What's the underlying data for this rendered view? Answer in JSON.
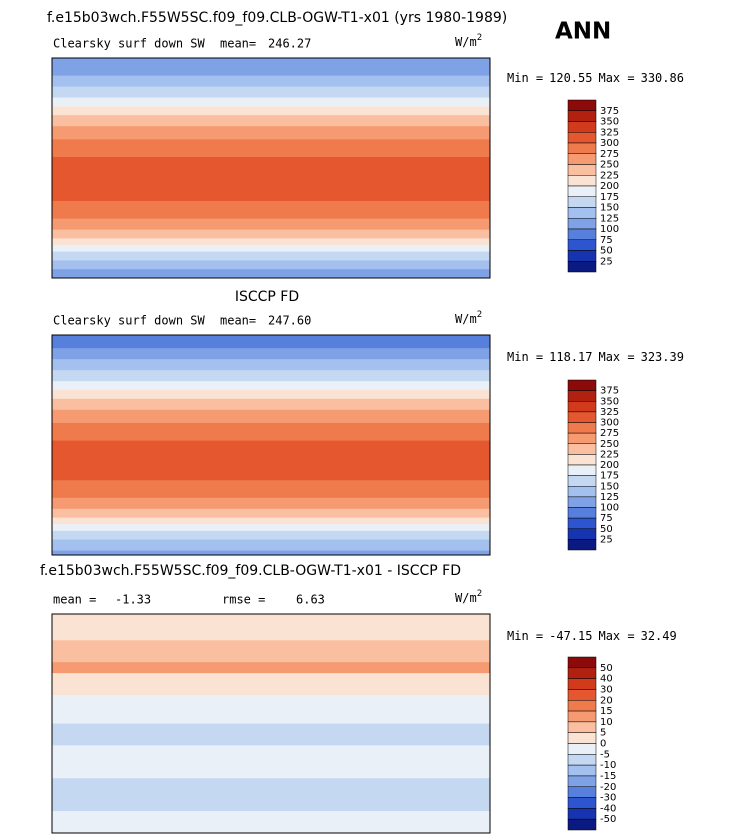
{
  "header": {
    "title": "f.e15b03wch.F55W5SC.f09_f09.CLB-OGW-T1-x01 (yrs 1980-1989)",
    "season": "ANN"
  },
  "panels": [
    {
      "variable": "Clearsky surf down SW",
      "mean_label": "mean=",
      "mean": "246.27",
      "units": "W/m",
      "units_exp": "2",
      "min_label": "Min =",
      "min": "120.55",
      "max_label": "Max =",
      "max": "330.86",
      "colorbar": {
        "levels": [
          375,
          350,
          325,
          300,
          275,
          250,
          225,
          200,
          175,
          150,
          125,
          100,
          75,
          50,
          25
        ],
        "colors": [
          "#8c0a0a",
          "#b2200f",
          "#d13a1a",
          "#e4572f",
          "#ef7a4c",
          "#f59a71",
          "#f9bfa0",
          "#fbe3d3",
          "#e9f0f8",
          "#c4d8f2",
          "#a3c0ee",
          "#7fa2e6",
          "#577fdc",
          "#2d55d0",
          "#1634b0",
          "#0a1a80"
        ]
      }
    },
    {
      "subtitle": "ISCCP FD",
      "variable": "Clearsky surf down SW",
      "mean_label": "mean=",
      "mean": "247.60",
      "units": "W/m",
      "units_exp": "2",
      "min_label": "Min =",
      "min": "118.17",
      "max_label": "Max =",
      "max": "323.39",
      "colorbar": {
        "levels": [
          375,
          350,
          325,
          300,
          275,
          250,
          225,
          200,
          175,
          150,
          125,
          100,
          75,
          50,
          25
        ],
        "colors": [
          "#8c0a0a",
          "#b2200f",
          "#d13a1a",
          "#e4572f",
          "#ef7a4c",
          "#f59a71",
          "#f9bfa0",
          "#fbe3d3",
          "#e9f0f8",
          "#c4d8f2",
          "#a3c0ee",
          "#7fa2e6",
          "#577fdc",
          "#2d55d0",
          "#1634b0",
          "#0a1a80"
        ]
      }
    },
    {
      "subtitle": "f.e15b03wch.F55W5SC.f09_f09.CLB-OGW-T1-x01 - ISCCP FD",
      "mean_label": "mean =",
      "mean": "-1.33",
      "rmse_label": "rmse =",
      "rmse": "6.63",
      "units": "W/m",
      "units_exp": "2",
      "min_label": "Min =",
      "min": "-47.15",
      "max_label": "Max =",
      "max": "32.49",
      "colorbar": {
        "levels": [
          50,
          40,
          30,
          20,
          15,
          10,
          5,
          0,
          -5,
          -10,
          -15,
          -20,
          -30,
          -40,
          -50
        ],
        "colors": [
          "#8c0a0a",
          "#b2200f",
          "#d13a1a",
          "#e4572f",
          "#ef7a4c",
          "#f59a71",
          "#f9bfa0",
          "#fbe3d3",
          "#e9f0f8",
          "#c4d8f2",
          "#a3c0ee",
          "#7fa2e6",
          "#577fdc",
          "#2d55d0",
          "#1634b0",
          "#0a1a80"
        ]
      }
    }
  ]
}
